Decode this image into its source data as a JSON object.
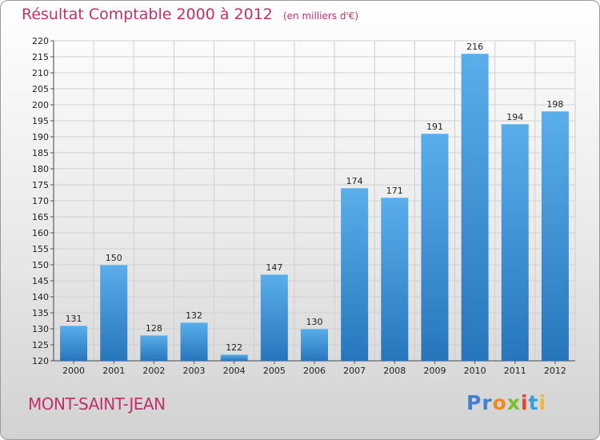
{
  "chart_data": {
    "type": "bar",
    "title": "Résultat Comptable 2000 à 2012",
    "subtitle": "(en milliers d'€)",
    "categories": [
      "2000",
      "2001",
      "2002",
      "2003",
      "2004",
      "2005",
      "2006",
      "2007",
      "2008",
      "2009",
      "2010",
      "2011",
      "2012"
    ],
    "values": [
      131,
      150,
      128,
      132,
      122,
      147,
      130,
      174,
      171,
      191,
      216,
      194,
      198
    ],
    "ylim": [
      120,
      220
    ],
    "ytick_step": 5,
    "grid": true,
    "xlabel": "",
    "ylabel": "",
    "bar_color": "#3a8fd8"
  },
  "footer": {
    "town": "MONT-SAINT-JEAN",
    "logo": [
      "Pr",
      "o",
      "x",
      "i",
      "t",
      "i"
    ]
  },
  "colors": {
    "title": "#c0306a",
    "town": "#c0306a"
  }
}
